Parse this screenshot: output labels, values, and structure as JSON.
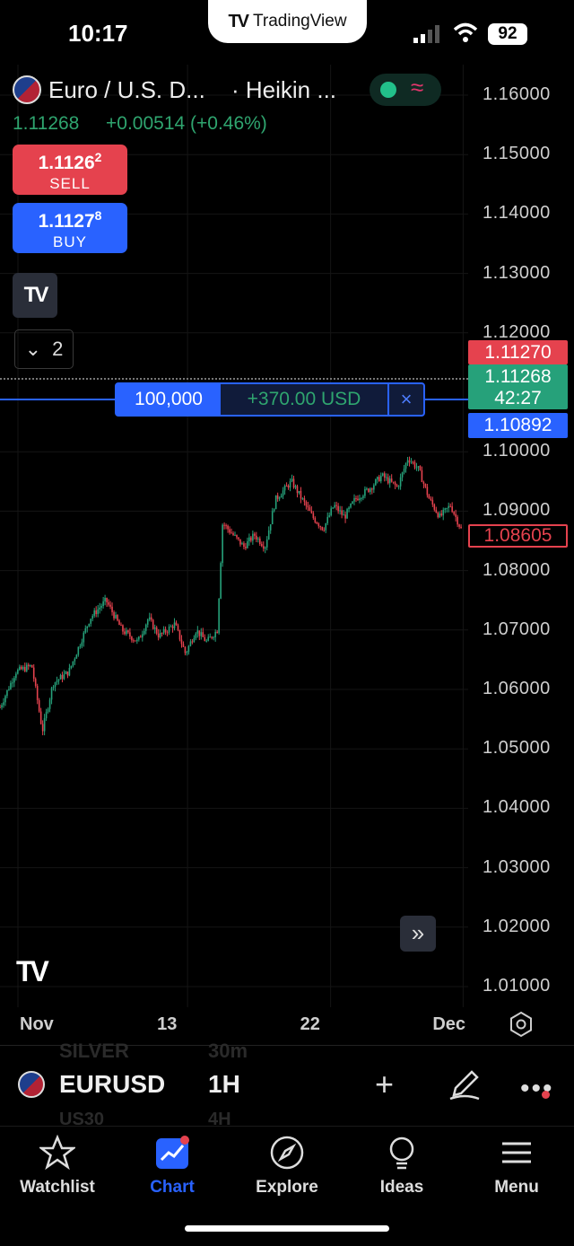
{
  "status_bar": {
    "time": "10:17",
    "app_island": "TradingView",
    "battery": "92"
  },
  "header": {
    "symbol_name": "Euro / U.S. D...",
    "chart_type": "· Heikin ...",
    "last_price": "1.11268",
    "change": "+0.00514 (+0.46%)",
    "market_status": "open",
    "colors": {
      "up": "#26a17a",
      "down": "#e5424e",
      "accent": "#2962ff"
    }
  },
  "trade": {
    "sell_price": "1.1126",
    "sell_pip": "2",
    "sell_label": "SELL",
    "buy_price": "1.1127",
    "buy_pip": "8",
    "buy_label": "BUY"
  },
  "indicators": {
    "count": "2"
  },
  "position": {
    "quantity": "100,000",
    "pl": "+370.00 USD",
    "close_symbol": "×"
  },
  "axis_labels": {
    "ask": "1.11270",
    "last": "1.11268",
    "countdown": "42:27",
    "bid": "1.10892",
    "cursor": "1.08605"
  },
  "chart_data": {
    "type": "candlestick",
    "y_ticks": [
      "1.16000",
      "1.15000",
      "1.14000",
      "1.13000",
      "1.12000",
      "1.10000",
      "1.09000",
      "1.08000",
      "1.07000",
      "1.06000",
      "1.05000",
      "1.04000",
      "1.03000",
      "1.02000",
      "1.01000"
    ],
    "x_ticks": [
      "Nov",
      "13",
      "22",
      "Dec"
    ],
    "ylim": [
      1.01,
      1.16
    ],
    "interval": "1H",
    "close_path": [
      [
        0,
        1.057
      ],
      [
        3,
        1.063
      ],
      [
        6,
        1.064
      ],
      [
        8,
        1.053
      ],
      [
        10,
        1.061
      ],
      [
        13,
        1.063
      ],
      [
        17,
        1.072
      ],
      [
        20,
        1.075
      ],
      [
        23,
        1.07
      ],
      [
        26,
        1.068
      ],
      [
        28,
        1.072
      ],
      [
        30,
        1.069
      ],
      [
        33,
        1.071
      ],
      [
        35,
        1.066
      ],
      [
        37,
        1.07
      ],
      [
        39,
        1.068
      ],
      [
        41,
        1.07
      ],
      [
        42,
        1.088
      ],
      [
        44,
        1.086
      ],
      [
        46,
        1.084
      ],
      [
        48,
        1.086
      ],
      [
        50,
        1.084
      ],
      [
        52,
        1.092
      ],
      [
        55,
        1.095
      ],
      [
        57,
        1.092
      ],
      [
        59,
        1.089
      ],
      [
        61,
        1.087
      ],
      [
        63,
        1.091
      ],
      [
        65,
        1.089
      ],
      [
        67,
        1.092
      ],
      [
        70,
        1.094
      ],
      [
        72,
        1.096
      ],
      [
        75,
        1.094
      ],
      [
        77,
        1.099
      ],
      [
        79,
        1.097
      ],
      [
        81,
        1.092
      ],
      [
        83,
        1.089
      ],
      [
        85,
        1.091
      ],
      [
        87,
        1.087
      ]
    ],
    "x_tick_positions": [
      0,
      32,
      59,
      84
    ],
    "x_domain": [
      0,
      88
    ]
  },
  "toolbar": {
    "symbol": "EURUSD",
    "interval": "1H",
    "ghost_1": "SILVER",
    "ghost_2": "30m",
    "ghost_3": "US30",
    "ghost_4": "4H"
  },
  "nav": {
    "watchlist": "Watchlist",
    "chart": "Chart",
    "explore": "Explore",
    "ideas": "Ideas",
    "menu": "Menu"
  }
}
